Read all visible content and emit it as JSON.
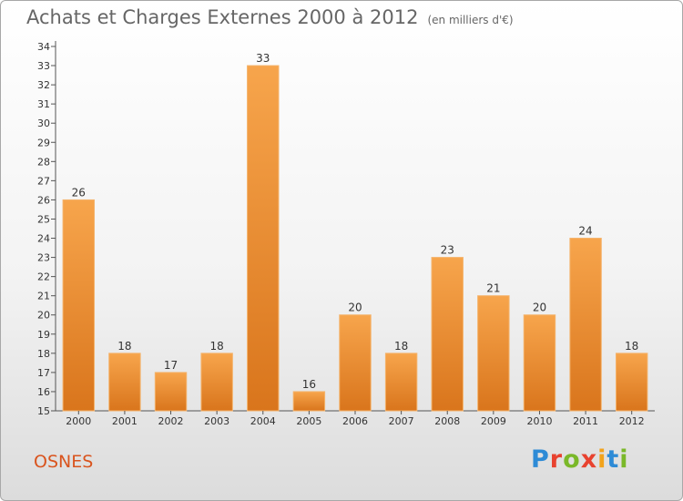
{
  "header": {
    "title": "Achats et Charges Externes 2000 à 2012",
    "subtitle": "(en milliers d'€)"
  },
  "footer": {
    "commune": "OSNES",
    "brand_letters": [
      "P",
      "r",
      "o",
      "x",
      "i",
      "t",
      "i"
    ],
    "brand_colors": [
      "#2e8bd6",
      "#e8422f",
      "#7ab829",
      "#e8422f",
      "#f2a31c",
      "#2e8bd6",
      "#7ab829"
    ]
  },
  "chart_data": {
    "type": "bar",
    "title": "Achats et Charges Externes 2000 à 2012",
    "subtitle": "(en milliers d'€)",
    "categories": [
      "2000",
      "2001",
      "2002",
      "2003",
      "2004",
      "2005",
      "2006",
      "2007",
      "2008",
      "2009",
      "2010",
      "2011",
      "2012"
    ],
    "values": [
      26,
      18,
      17,
      18,
      33,
      16,
      20,
      18,
      23,
      21,
      20,
      24,
      18
    ],
    "ylim": [
      15,
      34
    ],
    "yticks": [
      15,
      16,
      17,
      18,
      19,
      20,
      21,
      22,
      23,
      24,
      25,
      26,
      27,
      28,
      29,
      30,
      31,
      32,
      33,
      34
    ],
    "grid": false,
    "colors": {
      "bar_light": "#f7a54c",
      "bar_dark": "#d9751c",
      "bar_edge": "#f4b36b",
      "axis": "#555555"
    }
  }
}
